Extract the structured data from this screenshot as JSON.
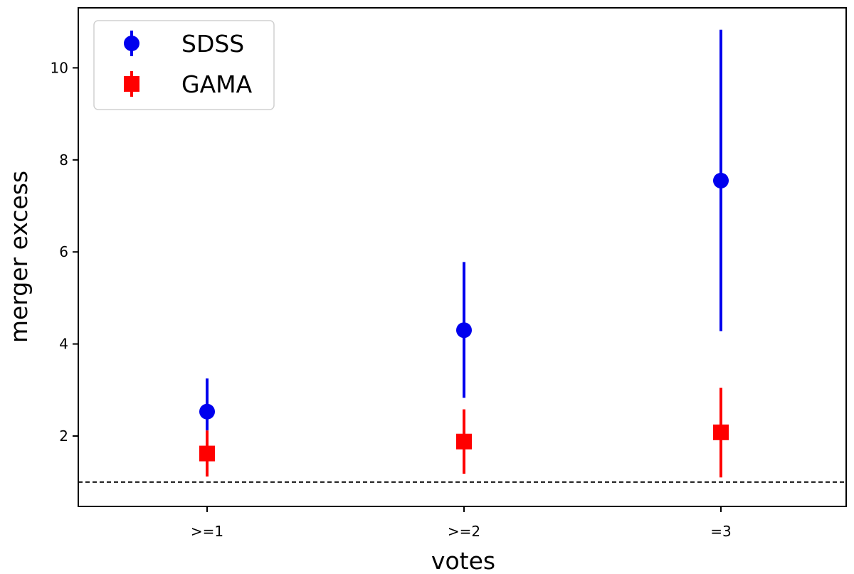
{
  "chart_data": {
    "type": "scatter",
    "title": "",
    "xlabel": "votes",
    "ylabel": "merger excess",
    "categories": [
      ">=1",
      ">=2",
      "=3"
    ],
    "ylim": [
      0.5,
      11.3
    ],
    "yticks": [
      2,
      4,
      6,
      8,
      10
    ],
    "yticks_labels": [
      "2",
      "4",
      "6",
      "8",
      "10"
    ],
    "reference_line": {
      "y": 1.0,
      "style": "dashed",
      "color": "#000000"
    },
    "legend_location": "upper-left",
    "series": [
      {
        "name": "SDSS",
        "marker": "circle",
        "color": "#0000ee",
        "values": [
          2.53,
          4.3,
          7.55
        ],
        "err_low": [
          2.12,
          2.83,
          4.28
        ],
        "err_high": [
          3.25,
          5.78,
          10.83
        ]
      },
      {
        "name": "GAMA",
        "marker": "square",
        "color": "#ff0000",
        "values": [
          1.62,
          1.88,
          2.08
        ],
        "err_low": [
          1.12,
          1.18,
          1.1
        ],
        "err_high": [
          2.12,
          2.58,
          3.05
        ]
      }
    ]
  }
}
